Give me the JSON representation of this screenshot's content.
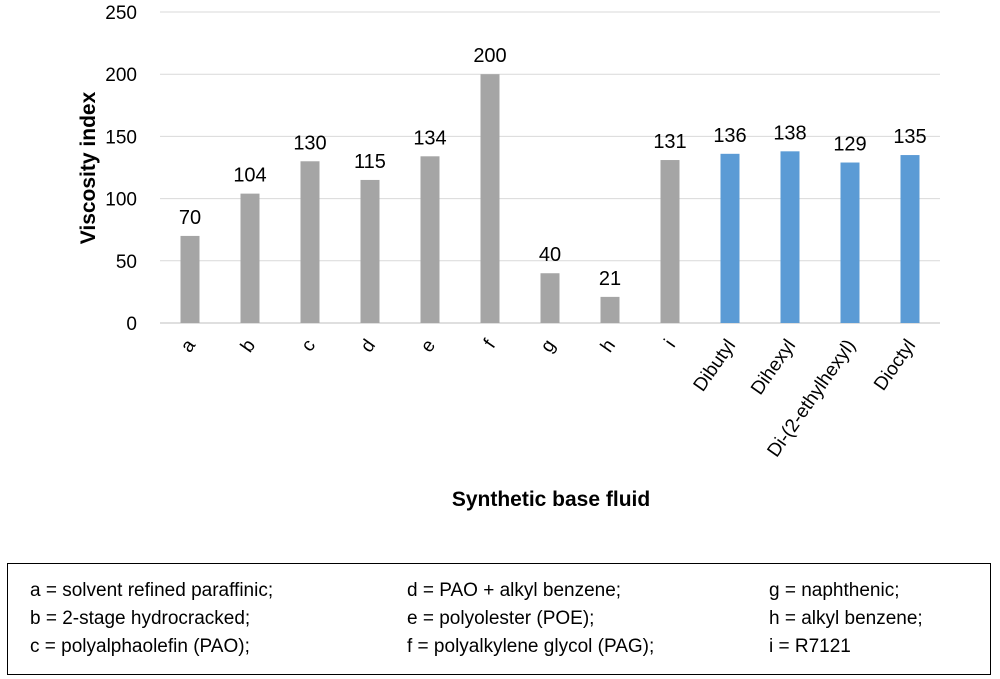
{
  "chart_data": {
    "type": "bar",
    "title": "",
    "xlabel": "Synthetic base fluid",
    "ylabel": "Viscosity index",
    "ylim": [
      0,
      250
    ],
    "yticks": [
      "0",
      "50",
      "100",
      "150",
      "200",
      "250"
    ],
    "grid": "horizontal",
    "categories": [
      "a",
      "b",
      "c",
      "d",
      "e",
      "f",
      "g",
      "h",
      "i",
      "Dibutyl",
      "Dihexyl",
      "Di-(2-ethylhexyl)",
      "Dioctyl"
    ],
    "values": [
      70,
      104,
      130,
      115,
      134,
      200,
      40,
      21,
      131,
      136,
      138,
      129,
      135
    ],
    "data_labels": [
      "70",
      "104",
      "130",
      "115",
      "134",
      "200",
      "40",
      "21",
      "131",
      "136",
      "138",
      "129",
      "135"
    ],
    "colors": [
      "#a5a5a5",
      "#a5a5a5",
      "#a5a5a5",
      "#a5a5a5",
      "#a5a5a5",
      "#a5a5a5",
      "#a5a5a5",
      "#a5a5a5",
      "#a5a5a5",
      "#5b9bd5",
      "#5b9bd5",
      "#5b9bd5",
      "#5b9bd5"
    ]
  },
  "legend": {
    "entries": [
      "a = solvent refined paraffinic;",
      "d = PAO + alkyl benzene;",
      "g = naphthenic;",
      "b = 2-stage hydrocracked;",
      "e = polyolester (POE);",
      "h = alkyl benzene;",
      "c = polyalphaolefin (PAO);",
      "f = polyalkylene glycol (PAG);",
      "i = R7121"
    ]
  }
}
